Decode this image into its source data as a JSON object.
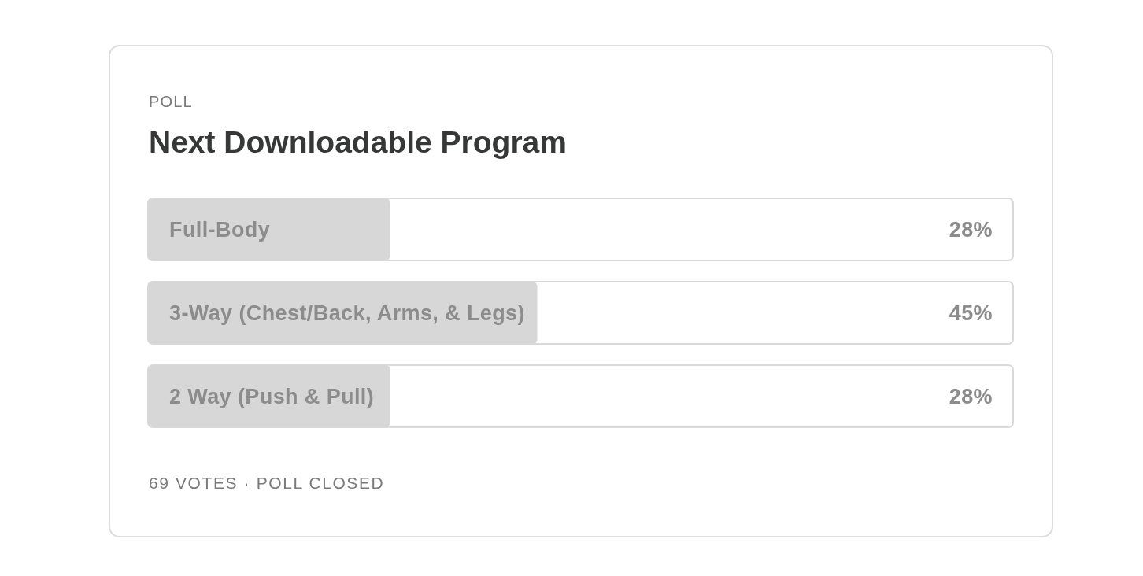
{
  "chart_data": {
    "type": "bar",
    "orientation": "horizontal",
    "subtitle": "POLL",
    "title": "Next Downloadable Program",
    "categories": [
      "Full-Body",
      "3-Way (Chest/Back, Arms, & Legs)",
      "2 Way (Push & Pull)"
    ],
    "values": [
      28,
      45,
      28
    ],
    "value_labels": [
      "28%",
      "45%",
      "28%"
    ],
    "color": "#d7d7d7",
    "xlim": [
      0,
      100
    ],
    "annotations": [
      "69 VOTES · POLL CLOSED"
    ]
  }
}
